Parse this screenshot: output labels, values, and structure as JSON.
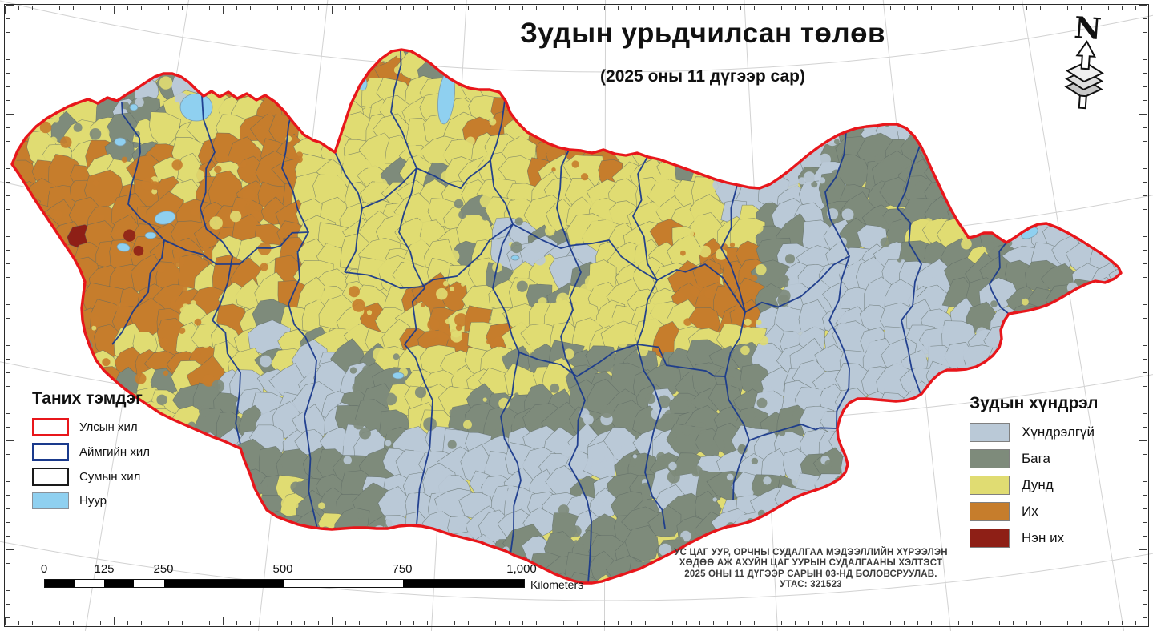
{
  "title": {
    "main": "Зудын урьдчилсан төлөв",
    "subtitle": "(2025 оны 11 дүгээр сар)"
  },
  "north_arrow_label": "N",
  "legend_symbols": {
    "header": "Таних тэмдэг",
    "items": [
      {
        "label": "Улсын хил",
        "type": "outline",
        "color": "#e8161b"
      },
      {
        "label": "Аймгийн хил",
        "type": "outline",
        "color": "#1a3a8c"
      },
      {
        "label": "Сумын хил",
        "type": "outline",
        "color": "#1a1a1a"
      },
      {
        "label": "Нуур",
        "type": "fill",
        "color": "#8fd0f0"
      }
    ]
  },
  "legend_severity": {
    "header": "Зудын хүндрэл",
    "items": [
      {
        "label": "Хүндрэлгүй",
        "color": "#bac9d7"
      },
      {
        "label": "Бага",
        "color": "#7e8b7b"
      },
      {
        "label": "Дунд",
        "color": "#e0dc72"
      },
      {
        "label": "Их",
        "color": "#c67d2c"
      },
      {
        "label": "Нэн их",
        "color": "#8e1f16"
      }
    ]
  },
  "scale_bar": {
    "ticks": [
      "0",
      "125",
      "250",
      "500",
      "750",
      "1,000"
    ],
    "unit_label": "Kilometers"
  },
  "credits_lines": [
    "УС ЦАГ УУР, ОРЧНЫ СУДАЛГАА МЭДЭЭЛЛИЙН ХҮРЭЭЛЭН",
    "ХӨДӨӨ АЖ АХУЙН ЦАГ УУРЫН СУДАЛГААНЫ ХЭЛТЭСТ",
    "2025 ОНЫ 11 ДҮГЭЭР САРЫН 03-НД БОЛОВСРУУЛАВ.",
    "УТАС: 321523"
  ],
  "map_colors": {
    "country_border": "#e8161b",
    "aimag_border": "#1a3a8c",
    "sum_border": "#5d6a64",
    "lake": "#8fd0f0",
    "graticule": "#d2d2d2",
    "severity": {
      "none": "#bac9d7",
      "low": "#7e8b7b",
      "medium": "#e0dc72",
      "high": "#c67d2c",
      "very_high": "#8e1f16"
    }
  }
}
